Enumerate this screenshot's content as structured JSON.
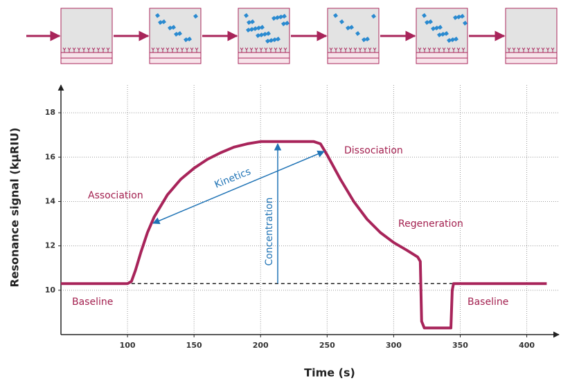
{
  "chart_data": {
    "type": "line",
    "x_label": "Time (s)",
    "y_label": "Resonance signal (kµRIU)",
    "xlim": [
      50,
      420
    ],
    "xticks": [
      100,
      150,
      200,
      250,
      300,
      350,
      400
    ],
    "ylim": [
      8,
      19
    ],
    "yticks": [
      10,
      12,
      14,
      16,
      18
    ],
    "grid": true,
    "baseline_level": 10.3,
    "series": [
      {
        "color": "#a8245a",
        "x": [
          50,
          100,
          103,
          106,
          110,
          115,
          120,
          130,
          140,
          150,
          160,
          170,
          180,
          190,
          200,
          210,
          220,
          230,
          240,
          245,
          250,
          260,
          270,
          280,
          290,
          300,
          310,
          318,
          320,
          321,
          323,
          330,
          340,
          343,
          344,
          345,
          350,
          360,
          400,
          415
        ],
        "values": [
          10.3,
          10.3,
          10.4,
          10.9,
          11.7,
          12.6,
          13.3,
          14.3,
          15.0,
          15.5,
          15.9,
          16.2,
          16.45,
          16.6,
          16.7,
          16.7,
          16.7,
          16.7,
          16.7,
          16.6,
          16.1,
          15.0,
          14.0,
          13.2,
          12.6,
          12.15,
          11.8,
          11.5,
          11.3,
          8.6,
          8.3,
          8.3,
          8.3,
          8.3,
          10.0,
          10.3,
          10.3,
          10.3,
          10.3,
          10.3
        ]
      }
    ],
    "annotations": [
      "Association",
      "Dissociation",
      "Regeneration",
      "Baseline",
      "Baseline",
      "Kinetics",
      "Concentration"
    ]
  }
}
